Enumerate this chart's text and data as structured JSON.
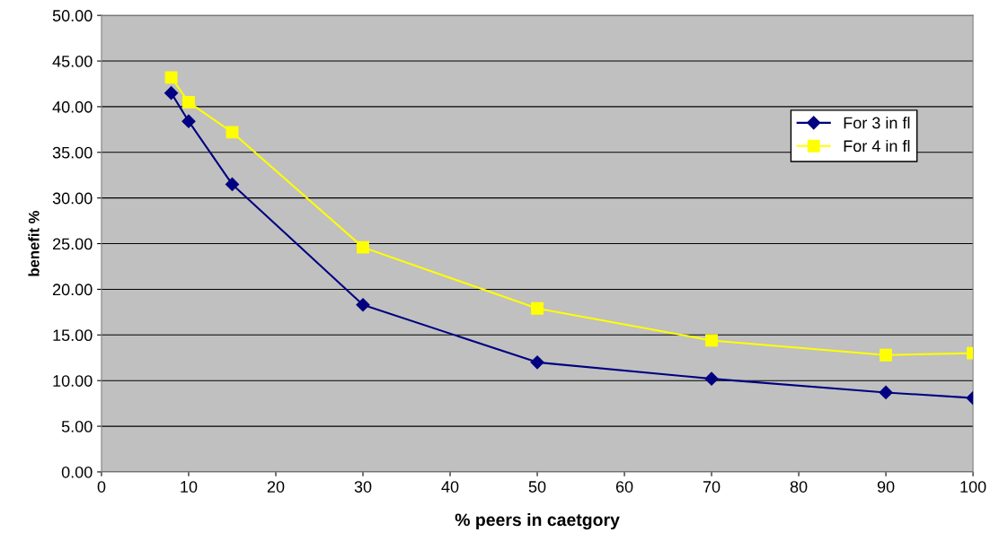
{
  "chart_data": {
    "type": "line",
    "xlabel": "% peers in caetgory",
    "ylabel": "benefit %",
    "xlim": [
      0,
      100
    ],
    "xticks": [
      0,
      10,
      20,
      30,
      40,
      50,
      60,
      70,
      80,
      90,
      100
    ],
    "ylim": [
      0,
      50
    ],
    "yticks": [
      {
        "value": 0,
        "label": "0.00"
      },
      {
        "value": 5,
        "label": "5.00"
      },
      {
        "value": 10,
        "label": "10.00"
      },
      {
        "value": 15,
        "label": "15.00"
      },
      {
        "value": 20,
        "label": "20.00"
      },
      {
        "value": 25,
        "label": "25.00"
      },
      {
        "value": 30,
        "label": "30.00"
      },
      {
        "value": 35,
        "label": "35.00"
      },
      {
        "value": 40,
        "label": "40.00"
      },
      {
        "value": 45,
        "label": "45.00"
      },
      {
        "value": 50,
        "label": "50.00"
      }
    ],
    "grid": "y",
    "legend": "top right",
    "line_style": "solid",
    "series": [
      {
        "name": "For 3 in fl",
        "color": "#000080",
        "marker": "diamond",
        "x": [
          8,
          10,
          15,
          30,
          50,
          70,
          90,
          100
        ],
        "values": [
          41.5,
          38.4,
          31.5,
          18.3,
          12.0,
          10.2,
          8.7,
          8.1
        ]
      },
      {
        "name": "For 4 in fl",
        "color": "#ffff00",
        "marker": "square",
        "x": [
          8,
          10,
          15,
          30,
          50,
          70,
          90,
          100
        ],
        "values": [
          43.2,
          40.5,
          37.2,
          24.6,
          17.9,
          14.4,
          12.8,
          13.0
        ]
      }
    ]
  }
}
